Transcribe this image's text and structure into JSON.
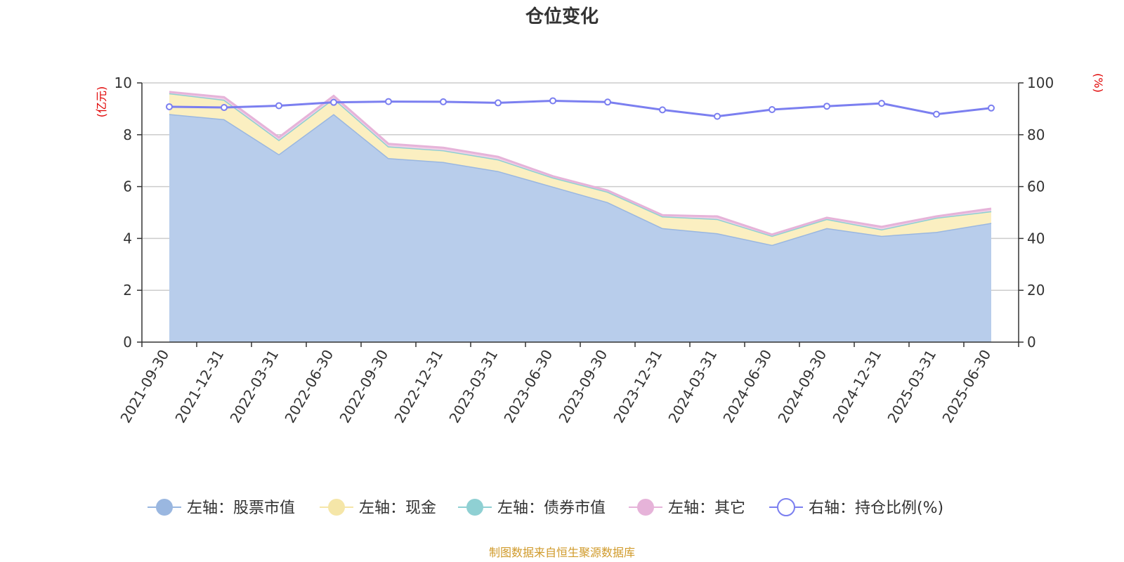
{
  "chart_data": {
    "type": "area",
    "title": "仓位变化",
    "source": "制图数据来自恒生聚源数据库",
    "left_axis": {
      "unit": "(亿元)",
      "ylim": [
        0,
        10
      ],
      "ticks": [
        0,
        2,
        4,
        6,
        8,
        10
      ]
    },
    "right_axis": {
      "unit": "(%)",
      "ylim": [
        0,
        100
      ],
      "ticks": [
        0,
        20,
        40,
        60,
        80,
        100
      ]
    },
    "categories": [
      "2021-09-30",
      "2021-12-31",
      "2022-03-31",
      "2022-06-30",
      "2022-09-30",
      "2022-12-31",
      "2023-03-31",
      "2023-06-30",
      "2023-09-30",
      "2023-12-31",
      "2024-03-31",
      "2024-06-30",
      "2024-09-30",
      "2024-12-31",
      "2025-03-31",
      "2025-06-30"
    ],
    "series": [
      {
        "name": "左轴：股票市值",
        "axis": "left",
        "kind": "stacked-area",
        "color": "#9ab7e0",
        "fill": "#b8cdeb",
        "values": [
          8.8,
          8.6,
          7.25,
          8.8,
          7.1,
          6.95,
          6.6,
          6.0,
          5.4,
          4.4,
          4.2,
          3.75,
          4.4,
          4.1,
          4.25,
          4.6
        ]
      },
      {
        "name": "左轴：现金",
        "axis": "left",
        "kind": "stacked-area",
        "color": "#f5e6a8",
        "fill": "#fbefc1",
        "values": [
          0.8,
          0.75,
          0.55,
          0.6,
          0.45,
          0.45,
          0.45,
          0.35,
          0.4,
          0.45,
          0.55,
          0.35,
          0.35,
          0.25,
          0.55,
          0.45
        ]
      },
      {
        "name": "左轴：债券市值",
        "axis": "left",
        "kind": "stacked-area",
        "color": "#8fd0d3",
        "fill": "#b8e3e5",
        "values": [
          0,
          0,
          0,
          0,
          0,
          0,
          0,
          0,
          0,
          0,
          0,
          0,
          0,
          0,
          0,
          0
        ]
      },
      {
        "name": "左轴：其它",
        "axis": "left",
        "kind": "stacked-area",
        "color": "#e6b3d9",
        "fill": "#f0cfe6",
        "values": [
          0.05,
          0.1,
          0.1,
          0.1,
          0.1,
          0.1,
          0.1,
          0.05,
          0.05,
          0.05,
          0.1,
          0.05,
          0.05,
          0.1,
          0.05,
          0.1
        ]
      },
      {
        "name": "右轴：持仓比例(%)",
        "axis": "right",
        "kind": "line",
        "color": "#7b7ff0",
        "values": [
          90.8,
          90.5,
          91.2,
          92.5,
          92.8,
          92.7,
          92.3,
          93.1,
          92.6,
          89.6,
          87.1,
          89.7,
          91.0,
          92.1,
          87.9,
          90.3
        ]
      }
    ],
    "legend": {
      "position": "bottom"
    },
    "grid": true
  }
}
